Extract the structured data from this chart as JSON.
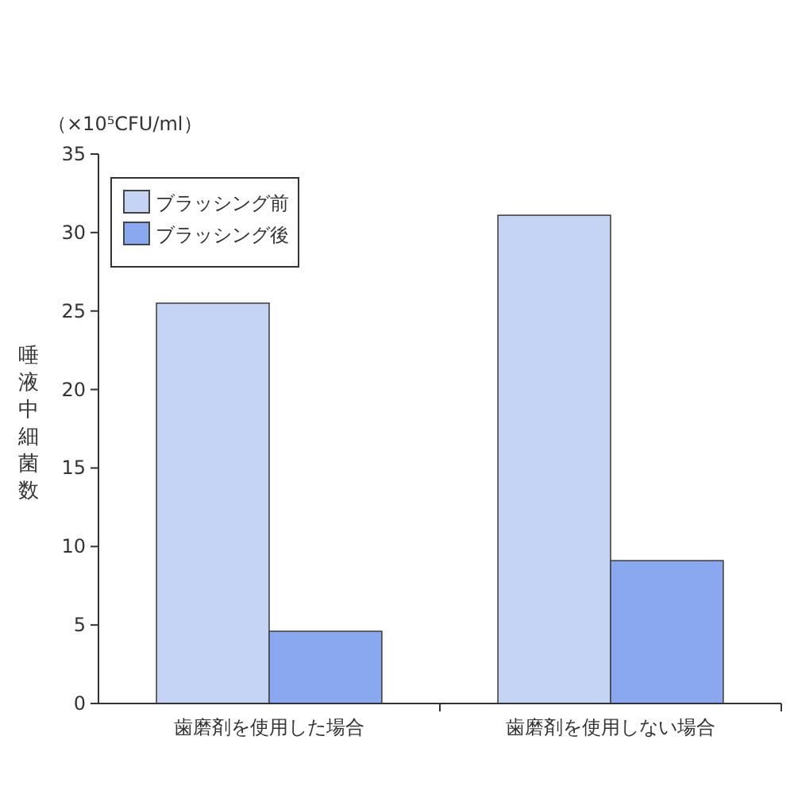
{
  "chart_data": {
    "type": "bar",
    "ylabel": "唾液中細菌数",
    "annotations": [
      "（×10⁵CFU/ml）"
    ],
    "categories": [
      "歯磨剤を使用した場合",
      "歯磨剤を使用しない場合"
    ],
    "series": [
      {
        "name": "ブラッシング前",
        "color": "#c5d3f5",
        "values": [
          25.5,
          31.1
        ]
      },
      {
        "name": "ブラッシング後",
        "color": "#8aa8ef",
        "values": [
          4.6,
          9.1
        ]
      }
    ],
    "ylim": [
      0,
      35
    ],
    "yticks": [
      0,
      5,
      10,
      15,
      20,
      25,
      30,
      35
    ],
    "legend": "top left"
  }
}
